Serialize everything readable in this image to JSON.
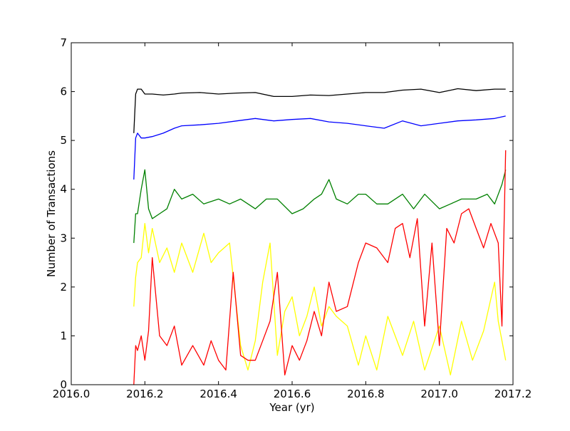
{
  "chart_data": {
    "type": "line",
    "title": "",
    "xlabel": "Year (yr)",
    "ylabel": "Number of Transactions",
    "xlim": [
      2016.0,
      2017.2
    ],
    "ylim": [
      0,
      7
    ],
    "xticks": [
      2016.0,
      2016.2,
      2016.4,
      2016.6,
      2016.8,
      2017.0,
      2017.2
    ],
    "xtick_labels": [
      "2016.0",
      "2016.2",
      "2016.4",
      "2016.6",
      "2016.8",
      "2017.0",
      "2017.2"
    ],
    "yticks": [
      0,
      1,
      2,
      3,
      4,
      5,
      6,
      7
    ],
    "ytick_labels": [
      "0",
      "1",
      "2",
      "3",
      "4",
      "5",
      "6",
      "7"
    ],
    "grid": false,
    "legend": "none",
    "series": [
      {
        "color": "#000000",
        "x": [
          2016.17,
          2016.175,
          2016.18,
          2016.19,
          2016.2,
          2016.22,
          2016.25,
          2016.28,
          2016.3,
          2016.35,
          2016.4,
          2016.45,
          2016.5,
          2016.55,
          2016.6,
          2016.65,
          2016.7,
          2016.75,
          2016.8,
          2016.85,
          2016.9,
          2016.95,
          2017.0,
          2017.05,
          2017.1,
          2017.15,
          2017.18
        ],
        "y": [
          5.15,
          5.95,
          6.05,
          6.05,
          5.95,
          5.95,
          5.93,
          5.95,
          5.97,
          5.98,
          5.95,
          5.97,
          5.98,
          5.9,
          5.9,
          5.93,
          5.92,
          5.95,
          5.98,
          5.98,
          6.03,
          6.05,
          5.98,
          6.06,
          6.02,
          6.05,
          6.05
        ]
      },
      {
        "color": "#0000ff",
        "x": [
          2016.17,
          2016.175,
          2016.18,
          2016.19,
          2016.2,
          2016.22,
          2016.25,
          2016.28,
          2016.3,
          2016.35,
          2016.4,
          2016.45,
          2016.5,
          2016.55,
          2016.6,
          2016.65,
          2016.7,
          2016.75,
          2016.8,
          2016.85,
          2016.9,
          2016.95,
          2017.0,
          2017.05,
          2017.1,
          2017.15,
          2017.18
        ],
        "y": [
          4.2,
          5.05,
          5.15,
          5.05,
          5.05,
          5.08,
          5.15,
          5.25,
          5.3,
          5.32,
          5.35,
          5.4,
          5.45,
          5.4,
          5.43,
          5.45,
          5.38,
          5.35,
          5.3,
          5.25,
          5.4,
          5.3,
          5.35,
          5.4,
          5.42,
          5.45,
          5.5
        ]
      },
      {
        "color": "#008000",
        "x": [
          2016.17,
          2016.175,
          2016.18,
          2016.19,
          2016.2,
          2016.21,
          2016.22,
          2016.24,
          2016.26,
          2016.28,
          2016.3,
          2016.33,
          2016.36,
          2016.4,
          2016.43,
          2016.46,
          2016.5,
          2016.53,
          2016.56,
          2016.6,
          2016.63,
          2016.66,
          2016.68,
          2016.7,
          2016.72,
          2016.75,
          2016.78,
          2016.8,
          2016.83,
          2016.86,
          2016.9,
          2016.93,
          2016.96,
          2017.0,
          2017.03,
          2017.06,
          2017.1,
          2017.13,
          2017.15,
          2017.17,
          2017.18
        ],
        "y": [
          2.9,
          3.5,
          3.5,
          4.0,
          4.4,
          3.6,
          3.4,
          3.5,
          3.6,
          4.0,
          3.8,
          3.9,
          3.7,
          3.8,
          3.7,
          3.8,
          3.6,
          3.8,
          3.8,
          3.5,
          3.6,
          3.8,
          3.9,
          4.2,
          3.8,
          3.7,
          3.9,
          3.9,
          3.7,
          3.7,
          3.9,
          3.6,
          3.9,
          3.6,
          3.7,
          3.8,
          3.8,
          3.9,
          3.7,
          4.1,
          4.4
        ]
      },
      {
        "color": "#ffff00",
        "x": [
          2016.17,
          2016.175,
          2016.18,
          2016.19,
          2016.2,
          2016.21,
          2016.22,
          2016.24,
          2016.26,
          2016.28,
          2016.3,
          2016.33,
          2016.36,
          2016.38,
          2016.4,
          2016.43,
          2016.46,
          2016.48,
          2016.5,
          2016.52,
          2016.54,
          2016.56,
          2016.58,
          2016.6,
          2016.62,
          2016.64,
          2016.66,
          2016.68,
          2016.7,
          2016.72,
          2016.75,
          2016.78,
          2016.8,
          2016.83,
          2016.86,
          2016.9,
          2016.93,
          2016.96,
          2017.0,
          2017.03,
          2017.06,
          2017.09,
          2017.12,
          2017.15,
          2017.16,
          2017.18
        ],
        "y": [
          1.6,
          2.2,
          2.5,
          2.6,
          3.3,
          2.7,
          3.2,
          2.5,
          2.8,
          2.3,
          2.9,
          2.3,
          3.1,
          2.5,
          2.7,
          2.9,
          0.8,
          0.3,
          0.9,
          2.1,
          2.9,
          0.6,
          1.5,
          1.8,
          1.0,
          1.4,
          2.0,
          1.2,
          1.6,
          1.4,
          1.2,
          0.4,
          1.0,
          0.3,
          1.4,
          0.6,
          1.3,
          0.3,
          1.2,
          0.2,
          1.3,
          0.5,
          1.1,
          2.1,
          1.3,
          0.5
        ]
      },
      {
        "color": "#ff0000",
        "x": [
          2016.17,
          2016.175,
          2016.18,
          2016.19,
          2016.2,
          2016.21,
          2016.22,
          2016.24,
          2016.26,
          2016.28,
          2016.3,
          2016.33,
          2016.36,
          2016.38,
          2016.4,
          2016.42,
          2016.44,
          2016.46,
          2016.48,
          2016.5,
          2016.52,
          2016.54,
          2016.56,
          2016.58,
          2016.6,
          2016.62,
          2016.64,
          2016.66,
          2016.68,
          2016.7,
          2016.72,
          2016.75,
          2016.78,
          2016.8,
          2016.83,
          2016.86,
          2016.88,
          2016.9,
          2016.92,
          2016.94,
          2016.96,
          2016.98,
          2017.0,
          2017.02,
          2017.04,
          2017.06,
          2017.08,
          2017.1,
          2017.12,
          2017.14,
          2017.16,
          2017.17,
          2017.18
        ],
        "y": [
          0.0,
          0.8,
          0.7,
          1.0,
          0.5,
          1.1,
          2.6,
          1.0,
          0.8,
          1.2,
          0.4,
          0.8,
          0.4,
          0.9,
          0.5,
          0.3,
          2.3,
          0.6,
          0.5,
          0.5,
          0.9,
          1.3,
          2.3,
          0.2,
          0.8,
          0.5,
          0.9,
          1.5,
          1.0,
          2.1,
          1.5,
          1.6,
          2.5,
          2.9,
          2.8,
          2.5,
          3.2,
          3.3,
          2.6,
          3.4,
          1.2,
          2.9,
          0.8,
          3.2,
          2.9,
          3.5,
          3.6,
          3.2,
          2.8,
          3.3,
          2.9,
          1.2,
          4.8
        ]
      }
    ]
  }
}
